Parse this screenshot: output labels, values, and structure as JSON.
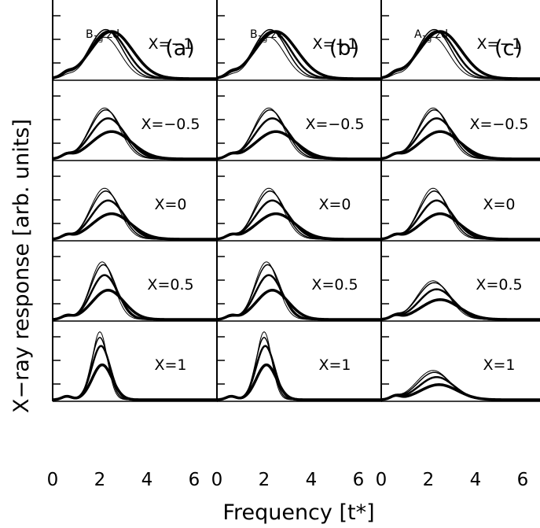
{
  "chart_data": {
    "type": "line",
    "xlabel": "Frequency [t*]",
    "ylabel": "X−ray response [arb. units]",
    "xlim": [
      0,
      7
    ],
    "xticks": [
      "0",
      "2",
      "4",
      "6"
    ],
    "grid": false,
    "panels": [
      {
        "letter": "(a)",
        "symmetry_main": "B",
        "symmetry_sub": "1g",
        "symmetry_suffix": " zd",
        "rows": [
          {
            "x_label": "X=−1",
            "peaks": [
              2.2,
              2.6,
              2.5,
              2.5
            ],
            "centers": [
              2.2,
              2.25,
              2.35,
              2.5
            ],
            "widths": [
              0.95,
              1.0,
              1.1,
              1.25
            ]
          },
          {
            "x_label": "X=−0.5",
            "peaks": [
              2.7,
              2.6,
              2.15,
              1.45
            ],
            "centers": [
              2.2,
              2.25,
              2.35,
              2.5
            ],
            "widths": [
              0.9,
              0.95,
              1.05,
              1.2
            ]
          },
          {
            "x_label": "X=0",
            "peaks": [
              2.7,
              2.55,
              2.05,
              1.35
            ],
            "centers": [
              2.2,
              2.25,
              2.35,
              2.5
            ],
            "widths": [
              0.85,
              0.9,
              1.0,
              1.15
            ]
          },
          {
            "x_label": "X=0.5",
            "peaks": [
              3.05,
              2.9,
              2.35,
              1.55
            ],
            "centers": [
              2.1,
              2.15,
              2.2,
              2.35
            ],
            "widths": [
              0.7,
              0.75,
              0.8,
              0.95
            ]
          },
          {
            "x_label": "X=1",
            "peaks": [
              3.6,
              3.3,
              2.85,
              1.85
            ],
            "centers": [
              2.0,
              2.0,
              2.05,
              2.1
            ],
            "widths": [
              0.45,
              0.5,
              0.55,
              0.6
            ]
          }
        ]
      },
      {
        "letter": "(b)",
        "symmetry_main": "B",
        "symmetry_sub": "1g",
        "symmetry_suffix": " ze",
        "rows": [
          {
            "x_label": "X=−1",
            "peaks": [
              2.2,
              2.6,
              2.5,
              2.5
            ],
            "centers": [
              2.2,
              2.25,
              2.35,
              2.5
            ],
            "widths": [
              0.95,
              1.0,
              1.1,
              1.25
            ]
          },
          {
            "x_label": "X=−0.5",
            "peaks": [
              2.7,
              2.6,
              2.15,
              1.45
            ],
            "centers": [
              2.2,
              2.25,
              2.35,
              2.5
            ],
            "widths": [
              0.9,
              0.95,
              1.05,
              1.2
            ]
          },
          {
            "x_label": "X=0",
            "peaks": [
              2.7,
              2.55,
              2.05,
              1.35
            ],
            "centers": [
              2.2,
              2.25,
              2.35,
              2.5
            ],
            "widths": [
              0.85,
              0.9,
              1.0,
              1.15
            ]
          },
          {
            "x_label": "X=0.5",
            "peaks": [
              3.05,
              2.9,
              2.35,
              1.55
            ],
            "centers": [
              2.1,
              2.15,
              2.2,
              2.35
            ],
            "widths": [
              0.7,
              0.75,
              0.8,
              0.95
            ]
          },
          {
            "x_label": "X=1",
            "peaks": [
              3.6,
              3.3,
              2.85,
              1.85
            ],
            "centers": [
              2.0,
              2.0,
              2.05,
              2.1
            ],
            "widths": [
              0.45,
              0.5,
              0.55,
              0.6
            ]
          }
        ]
      },
      {
        "letter": "(c)",
        "symmetry_main": "A",
        "symmetry_sub": "1g",
        "symmetry_suffix": " zd",
        "rows": [
          {
            "x_label": "X=−1",
            "peaks": [
              2.2,
              2.6,
              2.5,
              2.5
            ],
            "centers": [
              2.2,
              2.25,
              2.35,
              2.5
            ],
            "widths": [
              0.95,
              1.0,
              1.1,
              1.25
            ]
          },
          {
            "x_label": "X=−0.5",
            "peaks": [
              2.7,
              2.6,
              2.15,
              1.45
            ],
            "centers": [
              2.2,
              2.25,
              2.35,
              2.5
            ],
            "widths": [
              0.9,
              0.95,
              1.05,
              1.2
            ]
          },
          {
            "x_label": "X=0",
            "peaks": [
              2.7,
              2.55,
              2.05,
              1.35
            ],
            "centers": [
              2.2,
              2.25,
              2.35,
              2.5
            ],
            "widths": [
              0.85,
              0.9,
              1.0,
              1.15
            ]
          },
          {
            "x_label": "X=0.5",
            "peaks": [
              2.05,
              1.95,
              1.6,
              1.05
            ],
            "centers": [
              2.2,
              2.25,
              2.35,
              2.5
            ],
            "widths": [
              0.95,
              1.0,
              1.05,
              1.15
            ]
          },
          {
            "x_label": "X=1",
            "peaks": [
              1.55,
              1.45,
              1.2,
              0.8
            ],
            "centers": [
              2.2,
              2.25,
              2.35,
              2.45
            ],
            "widths": [
              1.0,
              1.0,
              1.05,
              1.1
            ]
          }
        ]
      }
    ],
    "line_widths": [
      1.0,
      1.5,
      2.5,
      3.5
    ],
    "line_color": "#000000",
    "background_color": "#ffffff"
  }
}
